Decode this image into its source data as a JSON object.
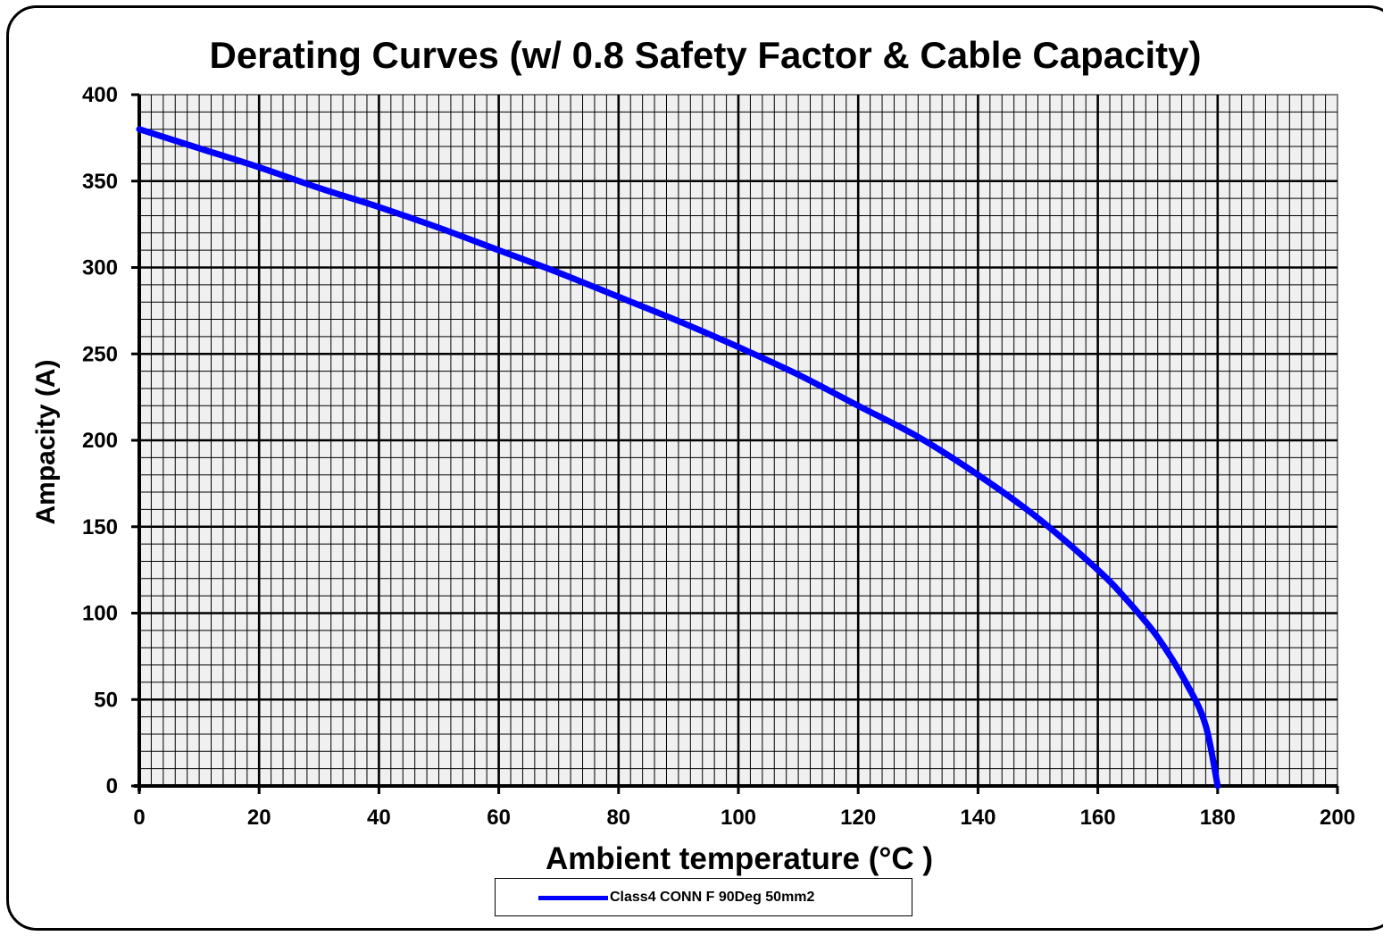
{
  "chart_data": {
    "type": "line",
    "title": "Derating Curves (w/ 0.8 Safety Factor & Cable Capacity)",
    "xlabel": "Ambient temperature  (°C )",
    "ylabel": "Ampacity (A)",
    "xlim": [
      0,
      200
    ],
    "ylim": [
      0,
      400
    ],
    "x_ticks": [
      "0",
      "20",
      "40",
      "60",
      "80",
      "100",
      "120",
      "140",
      "160",
      "180",
      "200"
    ],
    "y_ticks": [
      "0",
      "50",
      "100",
      "150",
      "200",
      "250",
      "300",
      "350",
      "400"
    ],
    "grid": true,
    "legend_position": "bottom-center",
    "colors": {
      "plot_background": "#f0f0f0",
      "grid": "#000000",
      "series_line": "#0000ff"
    },
    "series": [
      {
        "name": "Class4 CONN F 90Deg 50mm2",
        "x": [
          0,
          10,
          20,
          30,
          40,
          50,
          60,
          70,
          80,
          90,
          100,
          110,
          120,
          130,
          140,
          150,
          160,
          165,
          170,
          175,
          178,
          180
        ],
        "values": [
          380,
          369,
          358,
          346,
          335,
          323,
          310,
          297,
          283,
          269,
          254,
          238,
          220,
          202,
          180,
          155,
          125,
          107,
          86,
          58,
          35,
          0
        ]
      }
    ]
  }
}
